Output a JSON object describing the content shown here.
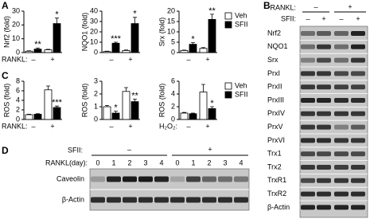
{
  "chart_data": [
    {
      "type": "bar",
      "panel": "A",
      "series": [
        {
          "name": "Veh",
          "color": "#ffffff"
        },
        {
          "name": "SFII",
          "color": "#000000"
        }
      ],
      "subplots": [
        {
          "ylabel": "Nrf2 (fold)",
          "x_label": "RANKL:",
          "categories": [
            "–",
            "+"
          ],
          "ylim": [
            0,
            30
          ],
          "yticks": [
            0,
            10,
            20,
            30
          ],
          "values": [
            [
              1,
              2
            ],
            [
              2.5,
              21
            ]
          ],
          "errors": [
            [
              0.3,
              0.4
            ],
            [
              0.8,
              4
            ]
          ],
          "stars": [
            [
              null,
              null
            ],
            [
              "**",
              "*"
            ]
          ]
        },
        {
          "ylabel": "NQO1 (fold)",
          "categories": [
            "–",
            "+"
          ],
          "ylim": [
            0,
            40
          ],
          "yticks": [
            0,
            10,
            20,
            30,
            40
          ],
          "values": [
            [
              1,
              2
            ],
            [
              9,
              28
            ]
          ],
          "errors": [
            [
              0.3,
              0.5
            ],
            [
              1,
              6
            ]
          ],
          "stars": [
            [
              null,
              null
            ],
            [
              "***",
              "*"
            ]
          ]
        },
        {
          "ylabel": "Srx (fold)",
          "categories": [
            "–",
            "+"
          ],
          "ylim": [
            0,
            20
          ],
          "yticks": [
            0,
            5,
            10,
            15,
            20
          ],
          "values": [
            [
              1,
              2
            ],
            [
              4,
              16
            ]
          ],
          "errors": [
            [
              0.2,
              0.4
            ],
            [
              0.8,
              2.5
            ]
          ],
          "stars": [
            [
              null,
              null
            ],
            [
              "*",
              "**"
            ]
          ]
        }
      ]
    },
    {
      "type": "bar",
      "panel": "C",
      "series": [
        {
          "name": "Veh",
          "color": "#ffffff"
        },
        {
          "name": "SFII",
          "color": "#000000"
        }
      ],
      "subplots": [
        {
          "ylabel": "ROS (fold)",
          "x_label": "RANKL:",
          "categories": [
            "–",
            "+"
          ],
          "ylim": [
            0,
            8
          ],
          "yticks": [
            0,
            2,
            4,
            6,
            8
          ],
          "values": [
            [
              1,
              6.2
            ],
            [
              1.1,
              2.5
            ]
          ],
          "errors": [
            [
              0.1,
              0.8
            ],
            [
              0.1,
              0.3
            ]
          ],
          "stars": [
            [
              null,
              null
            ],
            [
              null,
              "***"
            ]
          ]
        },
        {
          "ylabel": "ROS (fold)",
          "categories": [
            "–",
            "+"
          ],
          "ylim": [
            0,
            3
          ],
          "yticks": [
            0,
            1,
            2,
            3
          ],
          "values": [
            [
              1,
              2.2
            ],
            [
              0.5,
              1.4
            ]
          ],
          "errors": [
            [
              0.1,
              0.3
            ],
            [
              0.15,
              0.2
            ]
          ],
          "stars": [
            [
              null,
              null
            ],
            [
              "*",
              "**"
            ]
          ]
        },
        {
          "ylabel": "ROS (fold)",
          "x_label": "H₂O₂:",
          "categories": [
            "–",
            "+"
          ],
          "ylim": [
            0,
            6
          ],
          "yticks": [
            0,
            2,
            4,
            6
          ],
          "values": [
            [
              1,
              4.3
            ],
            [
              0.9,
              1.7
            ]
          ],
          "errors": [
            [
              0.1,
              1.2
            ],
            [
              0.1,
              0.3
            ]
          ],
          "stars": [
            [
              null,
              null
            ],
            [
              null,
              "*"
            ]
          ]
        }
      ]
    }
  ],
  "blot_B": {
    "panel": "B",
    "conditions": [
      {
        "label": "RANKL:",
        "values": [
          "–",
          "+"
        ]
      },
      {
        "label": "SFII:",
        "values": [
          "–",
          "+",
          "–",
          "+"
        ]
      }
    ],
    "rows": [
      "Nrf2",
      "NQO1",
      "Srx",
      "PrxI",
      "PrxII",
      "PrxIII",
      "PrxIV",
      "PrxV",
      "PrxVI",
      "Trx1",
      "Trx2",
      "TrxR1",
      "TrxR2",
      "β-Actin"
    ]
  },
  "blot_D": {
    "panel": "D",
    "conditions": [
      {
        "label": "SFII:",
        "values": [
          "–",
          "+"
        ]
      },
      {
        "label": "RANKL(day):",
        "values": [
          "0",
          "1",
          "2",
          "3",
          "4",
          "0",
          "1",
          "2",
          "3",
          "4"
        ]
      }
    ],
    "rows": [
      "Caveolin",
      "β-Actin"
    ]
  }
}
